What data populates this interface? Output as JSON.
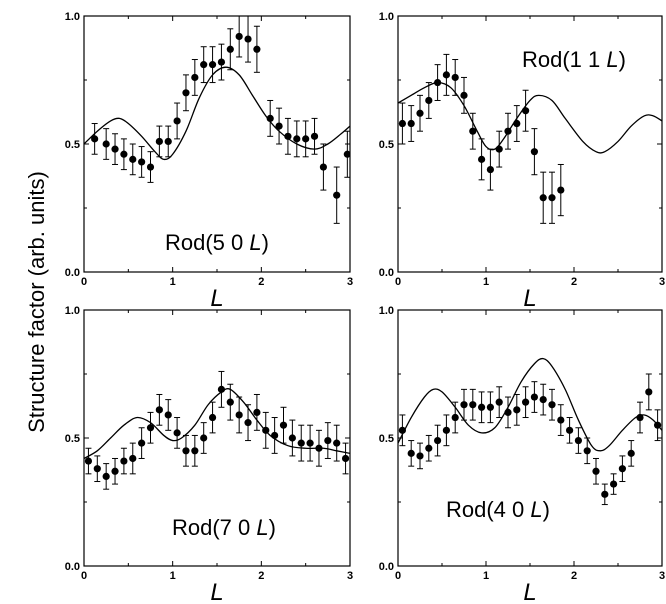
{
  "ylabel": "Structure factor (arb. units)",
  "chart_data": [
    {
      "type": "scatter",
      "title": "Rod(5 0 ",
      "title_italic": "L",
      "title_suffix": ")",
      "xlabel": "L",
      "xlim": [
        0,
        3
      ],
      "ylim": [
        0,
        1.0
      ],
      "xticks": [
        "0",
        "1",
        "2",
        "3"
      ],
      "yticks": [
        "0.0",
        "0.5",
        "1.0"
      ],
      "points": [
        {
          "x": 0.12,
          "y": 0.52,
          "err": 0.06
        },
        {
          "x": 0.25,
          "y": 0.5,
          "err": 0.06
        },
        {
          "x": 0.35,
          "y": 0.48,
          "err": 0.06
        },
        {
          "x": 0.45,
          "y": 0.46,
          "err": 0.06
        },
        {
          "x": 0.55,
          "y": 0.44,
          "err": 0.06
        },
        {
          "x": 0.65,
          "y": 0.43,
          "err": 0.06
        },
        {
          "x": 0.75,
          "y": 0.41,
          "err": 0.06
        },
        {
          "x": 0.85,
          "y": 0.51,
          "err": 0.06
        },
        {
          "x": 0.95,
          "y": 0.51,
          "err": 0.06
        },
        {
          "x": 1.05,
          "y": 0.59,
          "err": 0.07
        },
        {
          "x": 1.15,
          "y": 0.7,
          "err": 0.07
        },
        {
          "x": 1.25,
          "y": 0.76,
          "err": 0.07
        },
        {
          "x": 1.35,
          "y": 0.81,
          "err": 0.07
        },
        {
          "x": 1.45,
          "y": 0.81,
          "err": 0.07
        },
        {
          "x": 1.55,
          "y": 0.82,
          "err": 0.07
        },
        {
          "x": 1.65,
          "y": 0.87,
          "err": 0.08
        },
        {
          "x": 1.75,
          "y": 0.92,
          "err": 0.08
        },
        {
          "x": 1.85,
          "y": 0.91,
          "err": 0.09
        },
        {
          "x": 1.95,
          "y": 0.87,
          "err": 0.09
        },
        {
          "x": 2.1,
          "y": 0.6,
          "err": 0.07
        },
        {
          "x": 2.2,
          "y": 0.57,
          "err": 0.07
        },
        {
          "x": 2.3,
          "y": 0.53,
          "err": 0.07
        },
        {
          "x": 2.4,
          "y": 0.52,
          "err": 0.07
        },
        {
          "x": 2.5,
          "y": 0.52,
          "err": 0.07
        },
        {
          "x": 2.6,
          "y": 0.53,
          "err": 0.07
        },
        {
          "x": 2.7,
          "y": 0.41,
          "err": 0.09
        },
        {
          "x": 2.85,
          "y": 0.3,
          "err": 0.11
        },
        {
          "x": 2.97,
          "y": 0.46,
          "err": 0.09
        }
      ],
      "fit": [
        {
          "x": 0.0,
          "y": 0.5
        },
        {
          "x": 0.15,
          "y": 0.55
        },
        {
          "x": 0.3,
          "y": 0.59
        },
        {
          "x": 0.4,
          "y": 0.6
        },
        {
          "x": 0.5,
          "y": 0.58
        },
        {
          "x": 0.65,
          "y": 0.53
        },
        {
          "x": 0.8,
          "y": 0.47
        },
        {
          "x": 0.9,
          "y": 0.44
        },
        {
          "x": 1.0,
          "y": 0.46
        },
        {
          "x": 1.15,
          "y": 0.55
        },
        {
          "x": 1.3,
          "y": 0.68
        },
        {
          "x": 1.45,
          "y": 0.77
        },
        {
          "x": 1.6,
          "y": 0.8
        },
        {
          "x": 1.75,
          "y": 0.77
        },
        {
          "x": 1.9,
          "y": 0.69
        },
        {
          "x": 2.05,
          "y": 0.61
        },
        {
          "x": 2.2,
          "y": 0.55
        },
        {
          "x": 2.4,
          "y": 0.5
        },
        {
          "x": 2.6,
          "y": 0.48
        },
        {
          "x": 2.75,
          "y": 0.5
        },
        {
          "x": 2.9,
          "y": 0.54
        },
        {
          "x": 3.0,
          "y": 0.57
        }
      ]
    },
    {
      "type": "scatter",
      "title": "Rod(1 1 ",
      "title_italic": "L",
      "title_suffix": ")",
      "xlabel": "L",
      "xlim": [
        0,
        3
      ],
      "ylim": [
        0,
        1.0
      ],
      "xticks": [
        "0",
        "1",
        "2",
        "3"
      ],
      "yticks": [
        "0.0",
        "0.5",
        "1.0"
      ],
      "points": [
        {
          "x": 0.05,
          "y": 0.58,
          "err": 0.08
        },
        {
          "x": 0.15,
          "y": 0.58,
          "err": 0.07
        },
        {
          "x": 0.25,
          "y": 0.62,
          "err": 0.07
        },
        {
          "x": 0.35,
          "y": 0.67,
          "err": 0.07
        },
        {
          "x": 0.45,
          "y": 0.74,
          "err": 0.07
        },
        {
          "x": 0.55,
          "y": 0.77,
          "err": 0.08
        },
        {
          "x": 0.65,
          "y": 0.76,
          "err": 0.07
        },
        {
          "x": 0.75,
          "y": 0.69,
          "err": 0.07
        },
        {
          "x": 0.85,
          "y": 0.55,
          "err": 0.07
        },
        {
          "x": 0.95,
          "y": 0.44,
          "err": 0.08
        },
        {
          "x": 1.05,
          "y": 0.4,
          "err": 0.08
        },
        {
          "x": 1.15,
          "y": 0.48,
          "err": 0.07
        },
        {
          "x": 1.25,
          "y": 0.55,
          "err": 0.07
        },
        {
          "x": 1.35,
          "y": 0.58,
          "err": 0.07
        },
        {
          "x": 1.45,
          "y": 0.63,
          "err": 0.08
        },
        {
          "x": 1.55,
          "y": 0.47,
          "err": 0.09
        },
        {
          "x": 1.65,
          "y": 0.29,
          "err": 0.1
        },
        {
          "x": 1.75,
          "y": 0.29,
          "err": 0.1
        },
        {
          "x": 1.85,
          "y": 0.32,
          "err": 0.1
        }
      ],
      "fit": [
        {
          "x": 0.0,
          "y": 0.66
        },
        {
          "x": 0.15,
          "y": 0.69
        },
        {
          "x": 0.3,
          "y": 0.72
        },
        {
          "x": 0.45,
          "y": 0.74
        },
        {
          "x": 0.6,
          "y": 0.72
        },
        {
          "x": 0.75,
          "y": 0.65
        },
        {
          "x": 0.9,
          "y": 0.55
        },
        {
          "x": 1.0,
          "y": 0.49
        },
        {
          "x": 1.1,
          "y": 0.48
        },
        {
          "x": 1.2,
          "y": 0.52
        },
        {
          "x": 1.35,
          "y": 0.6
        },
        {
          "x": 1.5,
          "y": 0.67
        },
        {
          "x": 1.6,
          "y": 0.69
        },
        {
          "x": 1.75,
          "y": 0.67
        },
        {
          "x": 1.9,
          "y": 0.6
        },
        {
          "x": 2.1,
          "y": 0.51
        },
        {
          "x": 2.25,
          "y": 0.47
        },
        {
          "x": 2.35,
          "y": 0.47
        },
        {
          "x": 2.5,
          "y": 0.51
        },
        {
          "x": 2.65,
          "y": 0.57
        },
        {
          "x": 2.8,
          "y": 0.61
        },
        {
          "x": 2.9,
          "y": 0.61
        },
        {
          "x": 3.0,
          "y": 0.59
        }
      ]
    },
    {
      "type": "scatter",
      "title": "Rod(7 0 ",
      "title_italic": "L",
      "title_suffix": ")",
      "xlabel": "L",
      "xlim": [
        0,
        3
      ],
      "ylim": [
        0,
        1.0
      ],
      "xticks": [
        "0",
        "1",
        "2",
        "3"
      ],
      "yticks": [
        "0.0",
        "0.5",
        "1.0"
      ],
      "points": [
        {
          "x": 0.05,
          "y": 0.41,
          "err": 0.05
        },
        {
          "x": 0.15,
          "y": 0.38,
          "err": 0.05
        },
        {
          "x": 0.25,
          "y": 0.35,
          "err": 0.05
        },
        {
          "x": 0.35,
          "y": 0.37,
          "err": 0.05
        },
        {
          "x": 0.45,
          "y": 0.41,
          "err": 0.05
        },
        {
          "x": 0.55,
          "y": 0.42,
          "err": 0.06
        },
        {
          "x": 0.65,
          "y": 0.48,
          "err": 0.06
        },
        {
          "x": 0.75,
          "y": 0.54,
          "err": 0.06
        },
        {
          "x": 0.85,
          "y": 0.61,
          "err": 0.06
        },
        {
          "x": 0.95,
          "y": 0.59,
          "err": 0.06
        },
        {
          "x": 1.05,
          "y": 0.52,
          "err": 0.06
        },
        {
          "x": 1.15,
          "y": 0.45,
          "err": 0.06
        },
        {
          "x": 1.25,
          "y": 0.45,
          "err": 0.06
        },
        {
          "x": 1.35,
          "y": 0.5,
          "err": 0.06
        },
        {
          "x": 1.45,
          "y": 0.58,
          "err": 0.06
        },
        {
          "x": 1.55,
          "y": 0.69,
          "err": 0.07
        },
        {
          "x": 1.65,
          "y": 0.64,
          "err": 0.07
        },
        {
          "x": 1.75,
          "y": 0.59,
          "err": 0.07
        },
        {
          "x": 1.85,
          "y": 0.56,
          "err": 0.07
        },
        {
          "x": 1.95,
          "y": 0.6,
          "err": 0.07
        },
        {
          "x": 2.05,
          "y": 0.53,
          "err": 0.07
        },
        {
          "x": 2.15,
          "y": 0.51,
          "err": 0.07
        },
        {
          "x": 2.25,
          "y": 0.55,
          "err": 0.07
        },
        {
          "x": 2.35,
          "y": 0.5,
          "err": 0.07
        },
        {
          "x": 2.45,
          "y": 0.48,
          "err": 0.07
        },
        {
          "x": 2.55,
          "y": 0.48,
          "err": 0.07
        },
        {
          "x": 2.65,
          "y": 0.46,
          "err": 0.07
        },
        {
          "x": 2.75,
          "y": 0.49,
          "err": 0.07
        },
        {
          "x": 2.85,
          "y": 0.48,
          "err": 0.07
        },
        {
          "x": 2.95,
          "y": 0.42,
          "err": 0.06
        }
      ],
      "fit": [
        {
          "x": 0.0,
          "y": 0.42
        },
        {
          "x": 0.15,
          "y": 0.45
        },
        {
          "x": 0.3,
          "y": 0.5
        },
        {
          "x": 0.45,
          "y": 0.55
        },
        {
          "x": 0.6,
          "y": 0.58
        },
        {
          "x": 0.75,
          "y": 0.56
        },
        {
          "x": 0.9,
          "y": 0.51
        },
        {
          "x": 1.0,
          "y": 0.49
        },
        {
          "x": 1.1,
          "y": 0.5
        },
        {
          "x": 1.25,
          "y": 0.55
        },
        {
          "x": 1.4,
          "y": 0.63
        },
        {
          "x": 1.55,
          "y": 0.68
        },
        {
          "x": 1.65,
          "y": 0.69
        },
        {
          "x": 1.8,
          "y": 0.64
        },
        {
          "x": 1.95,
          "y": 0.57
        },
        {
          "x": 2.1,
          "y": 0.51
        },
        {
          "x": 2.3,
          "y": 0.47
        },
        {
          "x": 2.5,
          "y": 0.46
        },
        {
          "x": 2.7,
          "y": 0.46
        },
        {
          "x": 2.85,
          "y": 0.45
        },
        {
          "x": 3.0,
          "y": 0.44
        }
      ]
    },
    {
      "type": "scatter",
      "title": "Rod(4 0 ",
      "title_italic": "L",
      "title_suffix": ")",
      "xlabel": "L",
      "xlim": [
        0,
        3
      ],
      "ylim": [
        0,
        1.0
      ],
      "xticks": [
        "0",
        "1",
        "2",
        "3"
      ],
      "yticks": [
        "0.0",
        "0.5",
        "1.0"
      ],
      "points": [
        {
          "x": 0.05,
          "y": 0.53,
          "err": 0.06
        },
        {
          "x": 0.15,
          "y": 0.44,
          "err": 0.05
        },
        {
          "x": 0.25,
          "y": 0.43,
          "err": 0.05
        },
        {
          "x": 0.35,
          "y": 0.46,
          "err": 0.05
        },
        {
          "x": 0.45,
          "y": 0.49,
          "err": 0.06
        },
        {
          "x": 0.55,
          "y": 0.53,
          "err": 0.06
        },
        {
          "x": 0.65,
          "y": 0.58,
          "err": 0.06
        },
        {
          "x": 0.75,
          "y": 0.63,
          "err": 0.06
        },
        {
          "x": 0.85,
          "y": 0.63,
          "err": 0.06
        },
        {
          "x": 0.95,
          "y": 0.62,
          "err": 0.06
        },
        {
          "x": 1.05,
          "y": 0.62,
          "err": 0.06
        },
        {
          "x": 1.15,
          "y": 0.64,
          "err": 0.06
        },
        {
          "x": 1.25,
          "y": 0.6,
          "err": 0.06
        },
        {
          "x": 1.35,
          "y": 0.61,
          "err": 0.06
        },
        {
          "x": 1.45,
          "y": 0.64,
          "err": 0.06
        },
        {
          "x": 1.55,
          "y": 0.66,
          "err": 0.06
        },
        {
          "x": 1.65,
          "y": 0.65,
          "err": 0.06
        },
        {
          "x": 1.75,
          "y": 0.63,
          "err": 0.06
        },
        {
          "x": 1.85,
          "y": 0.57,
          "err": 0.06
        },
        {
          "x": 1.95,
          "y": 0.53,
          "err": 0.05
        },
        {
          "x": 2.05,
          "y": 0.49,
          "err": 0.05
        },
        {
          "x": 2.15,
          "y": 0.45,
          "err": 0.05
        },
        {
          "x": 2.25,
          "y": 0.37,
          "err": 0.05
        },
        {
          "x": 2.35,
          "y": 0.28,
          "err": 0.04
        },
        {
          "x": 2.45,
          "y": 0.32,
          "err": 0.04
        },
        {
          "x": 2.55,
          "y": 0.38,
          "err": 0.05
        },
        {
          "x": 2.65,
          "y": 0.44,
          "err": 0.05
        },
        {
          "x": 2.75,
          "y": 0.58,
          "err": 0.06
        },
        {
          "x": 2.85,
          "y": 0.68,
          "err": 0.07
        },
        {
          "x": 2.95,
          "y": 0.55,
          "err": 0.06
        }
      ],
      "fit": [
        {
          "x": 0.0,
          "y": 0.48
        },
        {
          "x": 0.15,
          "y": 0.58
        },
        {
          "x": 0.3,
          "y": 0.66
        },
        {
          "x": 0.4,
          "y": 0.69
        },
        {
          "x": 0.5,
          "y": 0.68
        },
        {
          "x": 0.65,
          "y": 0.62
        },
        {
          "x": 0.8,
          "y": 0.55
        },
        {
          "x": 0.95,
          "y": 0.52
        },
        {
          "x": 1.1,
          "y": 0.54
        },
        {
          "x": 1.25,
          "y": 0.62
        },
        {
          "x": 1.4,
          "y": 0.72
        },
        {
          "x": 1.55,
          "y": 0.79
        },
        {
          "x": 1.65,
          "y": 0.81
        },
        {
          "x": 1.75,
          "y": 0.78
        },
        {
          "x": 1.9,
          "y": 0.69
        },
        {
          "x": 2.05,
          "y": 0.57
        },
        {
          "x": 2.2,
          "y": 0.47
        },
        {
          "x": 2.3,
          "y": 0.45
        },
        {
          "x": 2.4,
          "y": 0.47
        },
        {
          "x": 2.55,
          "y": 0.53
        },
        {
          "x": 2.7,
          "y": 0.58
        },
        {
          "x": 2.8,
          "y": 0.59
        },
        {
          "x": 2.9,
          "y": 0.57
        },
        {
          "x": 3.0,
          "y": 0.53
        }
      ]
    }
  ]
}
